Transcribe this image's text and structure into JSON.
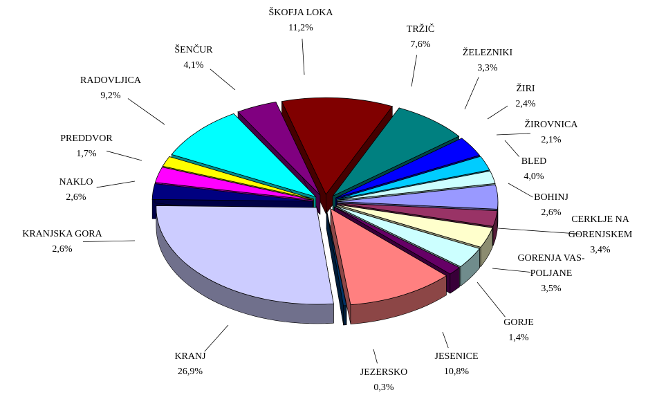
{
  "chart_data": {
    "type": "pie3d",
    "categories": [
      "ŠKOFJA LOKA",
      "TRŽIČ",
      "ŽELEZNIKI",
      "ŽIRI",
      "ŽIROVNICA",
      "BLED",
      "BOHINJ",
      "CERKLJE NA GORENJSKEM",
      "GORENJA VAS-POLJANE",
      "GORJE",
      "JESENICE",
      "JEZERSKO",
      "KRANJ",
      "KRANJSKA GORA",
      "NAKLO",
      "PREDDVOR",
      "RADOVLJICA",
      "ŠENČUR"
    ],
    "values": [
      11.2,
      7.6,
      3.3,
      2.4,
      2.1,
      4.0,
      2.6,
      3.4,
      3.5,
      1.4,
      10.8,
      0.3,
      26.9,
      2.6,
      2.6,
      1.7,
      9.2,
      4.1
    ],
    "value_labels": [
      "11,2%",
      "7,6%",
      "3,3%",
      "2,4%",
      "2,1%",
      "4,0%",
      "2,6%",
      "3,4%",
      "3,5%",
      "1,4%",
      "10,8%",
      "0,3%",
      "26,9%",
      "2,6%",
      "2,6%",
      "1,7%",
      "9,2%",
      "4,1%"
    ],
    "colors": [
      "#800000",
      "#008080",
      "#0000ff",
      "#00ccff",
      "#ccffff",
      "#9999ff",
      "#993366",
      "#ffffcc",
      "#ccffff",
      "#660066",
      "#ff8080",
      "#003366",
      "#ccccff",
      "#000080",
      "#ff00ff",
      "#ffff00",
      "#00ffff",
      "#800080"
    ]
  }
}
